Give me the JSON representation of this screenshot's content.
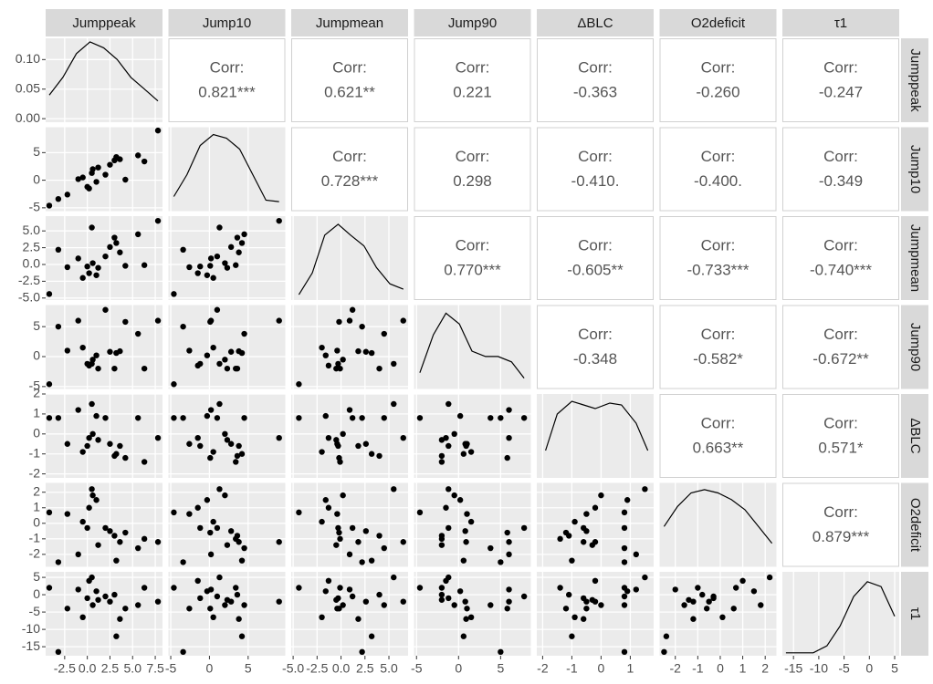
{
  "chart_data": {
    "type": "pairs",
    "corr_label": "Corr:",
    "variables": [
      {
        "name": "Jumppeak",
        "values": [
          -4.2,
          -3.2,
          -2.2,
          -1.0,
          0.0,
          0.2,
          0.5,
          0.6,
          1.0,
          1.2,
          2.0,
          2.5,
          3.0,
          3.2,
          3.6,
          4.2,
          5.6,
          6.3,
          7.8,
          -0.5
        ],
        "xlim": [
          -4.6,
          8.3
        ],
        "xticks": [
          -2.5,
          {
            "value": 0,
            "label": "0.0"
          },
          2.5,
          {
            "value": 5,
            "label": "5.0"
          },
          7.5
        ],
        "ylim": [
          -0.006,
          0.136
        ],
        "yticks": [
          {
            "value": 0,
            "label": "0.00"
          },
          0.05,
          {
            "value": 0.1,
            "label": "0.10"
          }
        ],
        "density": {
          "x": [
            -4.2,
            -2.7,
            -1.2,
            0.3,
            1.8,
            3.3,
            4.8,
            6.3,
            7.8
          ],
          "y": [
            0.04,
            0.07,
            0.11,
            0.13,
            0.12,
            0.1,
            0.07,
            0.05,
            0.03
          ]
        }
      },
      {
        "name": "Jump10",
        "values": [
          -4.6,
          -3.4,
          -2.6,
          0.2,
          -1.2,
          -1.5,
          1.3,
          2.0,
          -0.3,
          2.3,
          1.0,
          2.8,
          3.6,
          4.2,
          3.8,
          0.1,
          4.5,
          3.4,
          9.0,
          0.5
        ],
        "xlim": [
          -5.3,
          9.8
        ],
        "xticks": [
          -5,
          0,
          5
        ],
        "ylim": [
          -5.6,
          9.6
        ],
        "yticks": [
          -5,
          0,
          5
        ],
        "density_ylim": [
          0,
          0.115
        ],
        "density": {
          "x": [
            -4.6,
            -2.9,
            -1.2,
            0.5,
            2.2,
            3.9,
            5.6,
            7.3,
            9.0
          ],
          "y": [
            0.02,
            0.05,
            0.09,
            0.105,
            0.1,
            0.085,
            0.05,
            0.015,
            0.013
          ]
        }
      },
      {
        "name": "Jumpmean",
        "values": [
          -4.4,
          2.2,
          -0.4,
          0.9,
          -0.3,
          -1.3,
          5.5,
          0.2,
          -1.6,
          -0.5,
          1.2,
          2.6,
          4.0,
          3.2,
          1.8,
          -0.2,
          4.5,
          -0.1,
          6.5,
          -2.0
        ],
        "xlim": [
          -5.2,
          7.0
        ],
        "xticks": [
          {
            "value": -5,
            "label": "-5.0"
          },
          -2.5,
          {
            "value": 0,
            "label": "0.0"
          },
          2.5,
          {
            "value": 5,
            "label": "5.0"
          }
        ],
        "ylim": [
          -5.3,
          7.2
        ],
        "yticks": [
          {
            "value": -5,
            "label": "-5.0"
          },
          -2.5,
          {
            "value": 0,
            "label": "0.0"
          },
          2.5,
          {
            "value": 5,
            "label": "5.0"
          }
        ],
        "density_ylim": [
          0,
          0.155
        ],
        "density": {
          "x": [
            -4.4,
            -3.0,
            -1.7,
            -0.3,
            1.0,
            2.4,
            3.7,
            5.1,
            6.5
          ],
          "y": [
            0.01,
            0.05,
            0.12,
            0.14,
            0.12,
            0.1,
            0.06,
            0.03,
            0.02
          ]
        }
      },
      {
        "name": "Jump90",
        "values": [
          -4.6,
          5.0,
          1.0,
          6.0,
          -1.2,
          -1.5,
          -1.2,
          -0.5,
          0.2,
          -2.0,
          7.8,
          0.8,
          -2.0,
          0.6,
          0.9,
          5.8,
          3.8,
          -2.0,
          6.0,
          1.5
        ],
        "xlim": [
          -5.3,
          8.6
        ],
        "xticks": [
          -5,
          0,
          5
        ],
        "ylim": [
          -5.4,
          8.6
        ],
        "yticks": [
          -5,
          0,
          5
        ],
        "density_ylim": [
          0,
          0.155
        ],
        "density": {
          "x": [
            -4.6,
            -3.0,
            -1.5,
            0.1,
            1.6,
            3.2,
            4.7,
            6.3,
            7.8
          ],
          "y": [
            0.03,
            0.1,
            0.14,
            0.12,
            0.07,
            0.06,
            0.06,
            0.05,
            0.02
          ]
        }
      },
      {
        "name": "ΔBLC",
        "values": [
          0.8,
          0.8,
          -0.5,
          1.2,
          -0.6,
          -0.2,
          1.5,
          0.0,
          0.9,
          -0.3,
          0.8,
          -0.5,
          -1.1,
          -1.0,
          -0.6,
          -1.2,
          0.8,
          -1.4,
          -0.2,
          -0.9
        ],
        "xlim": [
          -2.2,
          1.8
        ],
        "xticks": [
          -2,
          -1,
          0,
          1
        ],
        "ylim": [
          -2.2,
          2.0
        ],
        "yticks": [
          -2,
          -1,
          0,
          1,
          2
        ],
        "density_ylim": [
          0,
          0.46
        ],
        "density": {
          "x": [
            -1.9,
            -1.5,
            -1.0,
            -0.6,
            -0.2,
            0.3,
            0.7,
            1.2,
            1.6
          ],
          "y": [
            0.15,
            0.35,
            0.42,
            0.4,
            0.38,
            0.41,
            0.4,
            0.3,
            0.15
          ]
        }
      },
      {
        "name": "O2deficit",
        "values": [
          0.7,
          -2.5,
          0.6,
          -2.0,
          -0.3,
          1.0,
          2.2,
          1.8,
          1.5,
          -1.4,
          -0.3,
          -0.5,
          -0.8,
          -2.4,
          -1.2,
          -0.6,
          -1.6,
          -1.0,
          -1.2,
          0.1
        ],
        "xlim": [
          -2.7,
          2.5
        ],
        "xticks": [
          -2,
          -1,
          0,
          1,
          2
        ],
        "ylim": [
          -2.8,
          2.6
        ],
        "yticks": [
          -2,
          -1,
          0,
          1,
          2
        ],
        "density_ylim": [
          0,
          0.25
        ],
        "density": {
          "x": [
            -2.5,
            -1.9,
            -1.3,
            -0.7,
            -0.1,
            0.5,
            1.1,
            1.7,
            2.3
          ],
          "y": [
            0.12,
            0.18,
            0.22,
            0.23,
            0.22,
            0.2,
            0.17,
            0.12,
            0.07
          ]
        }
      },
      {
        "name": "τ1",
        "values": [
          2.0,
          -16.5,
          -4.0,
          1.5,
          -1.0,
          4.0,
          5.0,
          -3.0,
          1.0,
          -1.5,
          -0.5,
          -2.0,
          0.0,
          -12.0,
          -7.0,
          -4.0,
          -3.0,
          2.0,
          -2.0,
          -6.5
        ],
        "xlim": [
          -17.2,
          5.9
        ],
        "xticks": [
          -15,
          -10,
          -5,
          0,
          5
        ],
        "ylim": [
          -17.6,
          6.6
        ],
        "yticks": [
          -15,
          -10,
          -5,
          0,
          5
        ],
        "density_ylim": [
          0,
          0.085
        ],
        "density": {
          "x": [
            -16.5,
            -13.8,
            -11.1,
            -8.4,
            -5.8,
            -3.1,
            -0.4,
            2.3,
            5.0
          ],
          "y": [
            0.003,
            0.003,
            0.003,
            0.01,
            0.03,
            0.06,
            0.075,
            0.07,
            0.04
          ]
        }
      }
    ],
    "correlations": [
      [
        "0.821***",
        "0.621**",
        "0.221",
        "-0.363",
        "-0.260",
        "-0.247"
      ],
      [
        "0.728***",
        "0.298",
        "-0.410.",
        "-0.400.",
        "-0.349"
      ],
      [
        "0.770***",
        "-0.605**",
        "-0.733***",
        "-0.740***"
      ],
      [
        "-0.348",
        "-0.582*",
        "-0.672**"
      ],
      [
        "0.663**",
        "0.571*"
      ],
      [
        "0.879***"
      ]
    ]
  }
}
